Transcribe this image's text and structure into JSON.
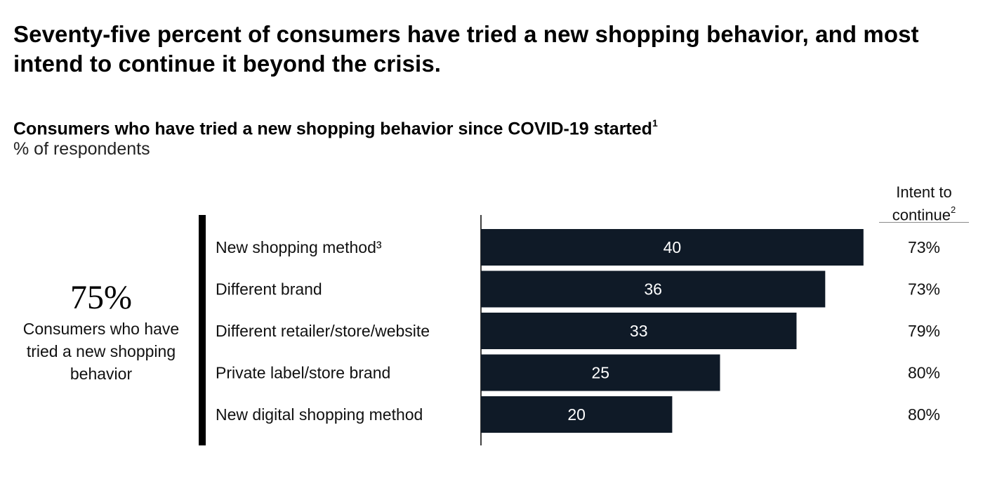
{
  "headline": "Seventy-five percent of consumers have tried a new shopping behavior, and most intend to continue it beyond the crisis.",
  "callout": {
    "value": "75%",
    "label": "Consumers who have tried a new shopping behavior"
  },
  "colors": {
    "bar": "#0f1a27",
    "axis": "#000000"
  },
  "chart_data": {
    "type": "bar",
    "orientation": "horizontal",
    "title": "Consumers who have tried a new shopping behavior since COVID-19 started",
    "title_footnote": "1",
    "unit": "% of respondents",
    "categories": [
      "New shopping method³",
      "Different brand",
      "Different retailer/store/website",
      "Private label/store brand",
      "New digital shopping method"
    ],
    "values": [
      40,
      36,
      33,
      25,
      20
    ],
    "xlim": [
      0,
      40
    ],
    "grid": false,
    "intent_column": {
      "header": "Intent to continue",
      "header_footnote": "2",
      "values": [
        "73%",
        "73%",
        "79%",
        "80%",
        "80%"
      ]
    }
  }
}
